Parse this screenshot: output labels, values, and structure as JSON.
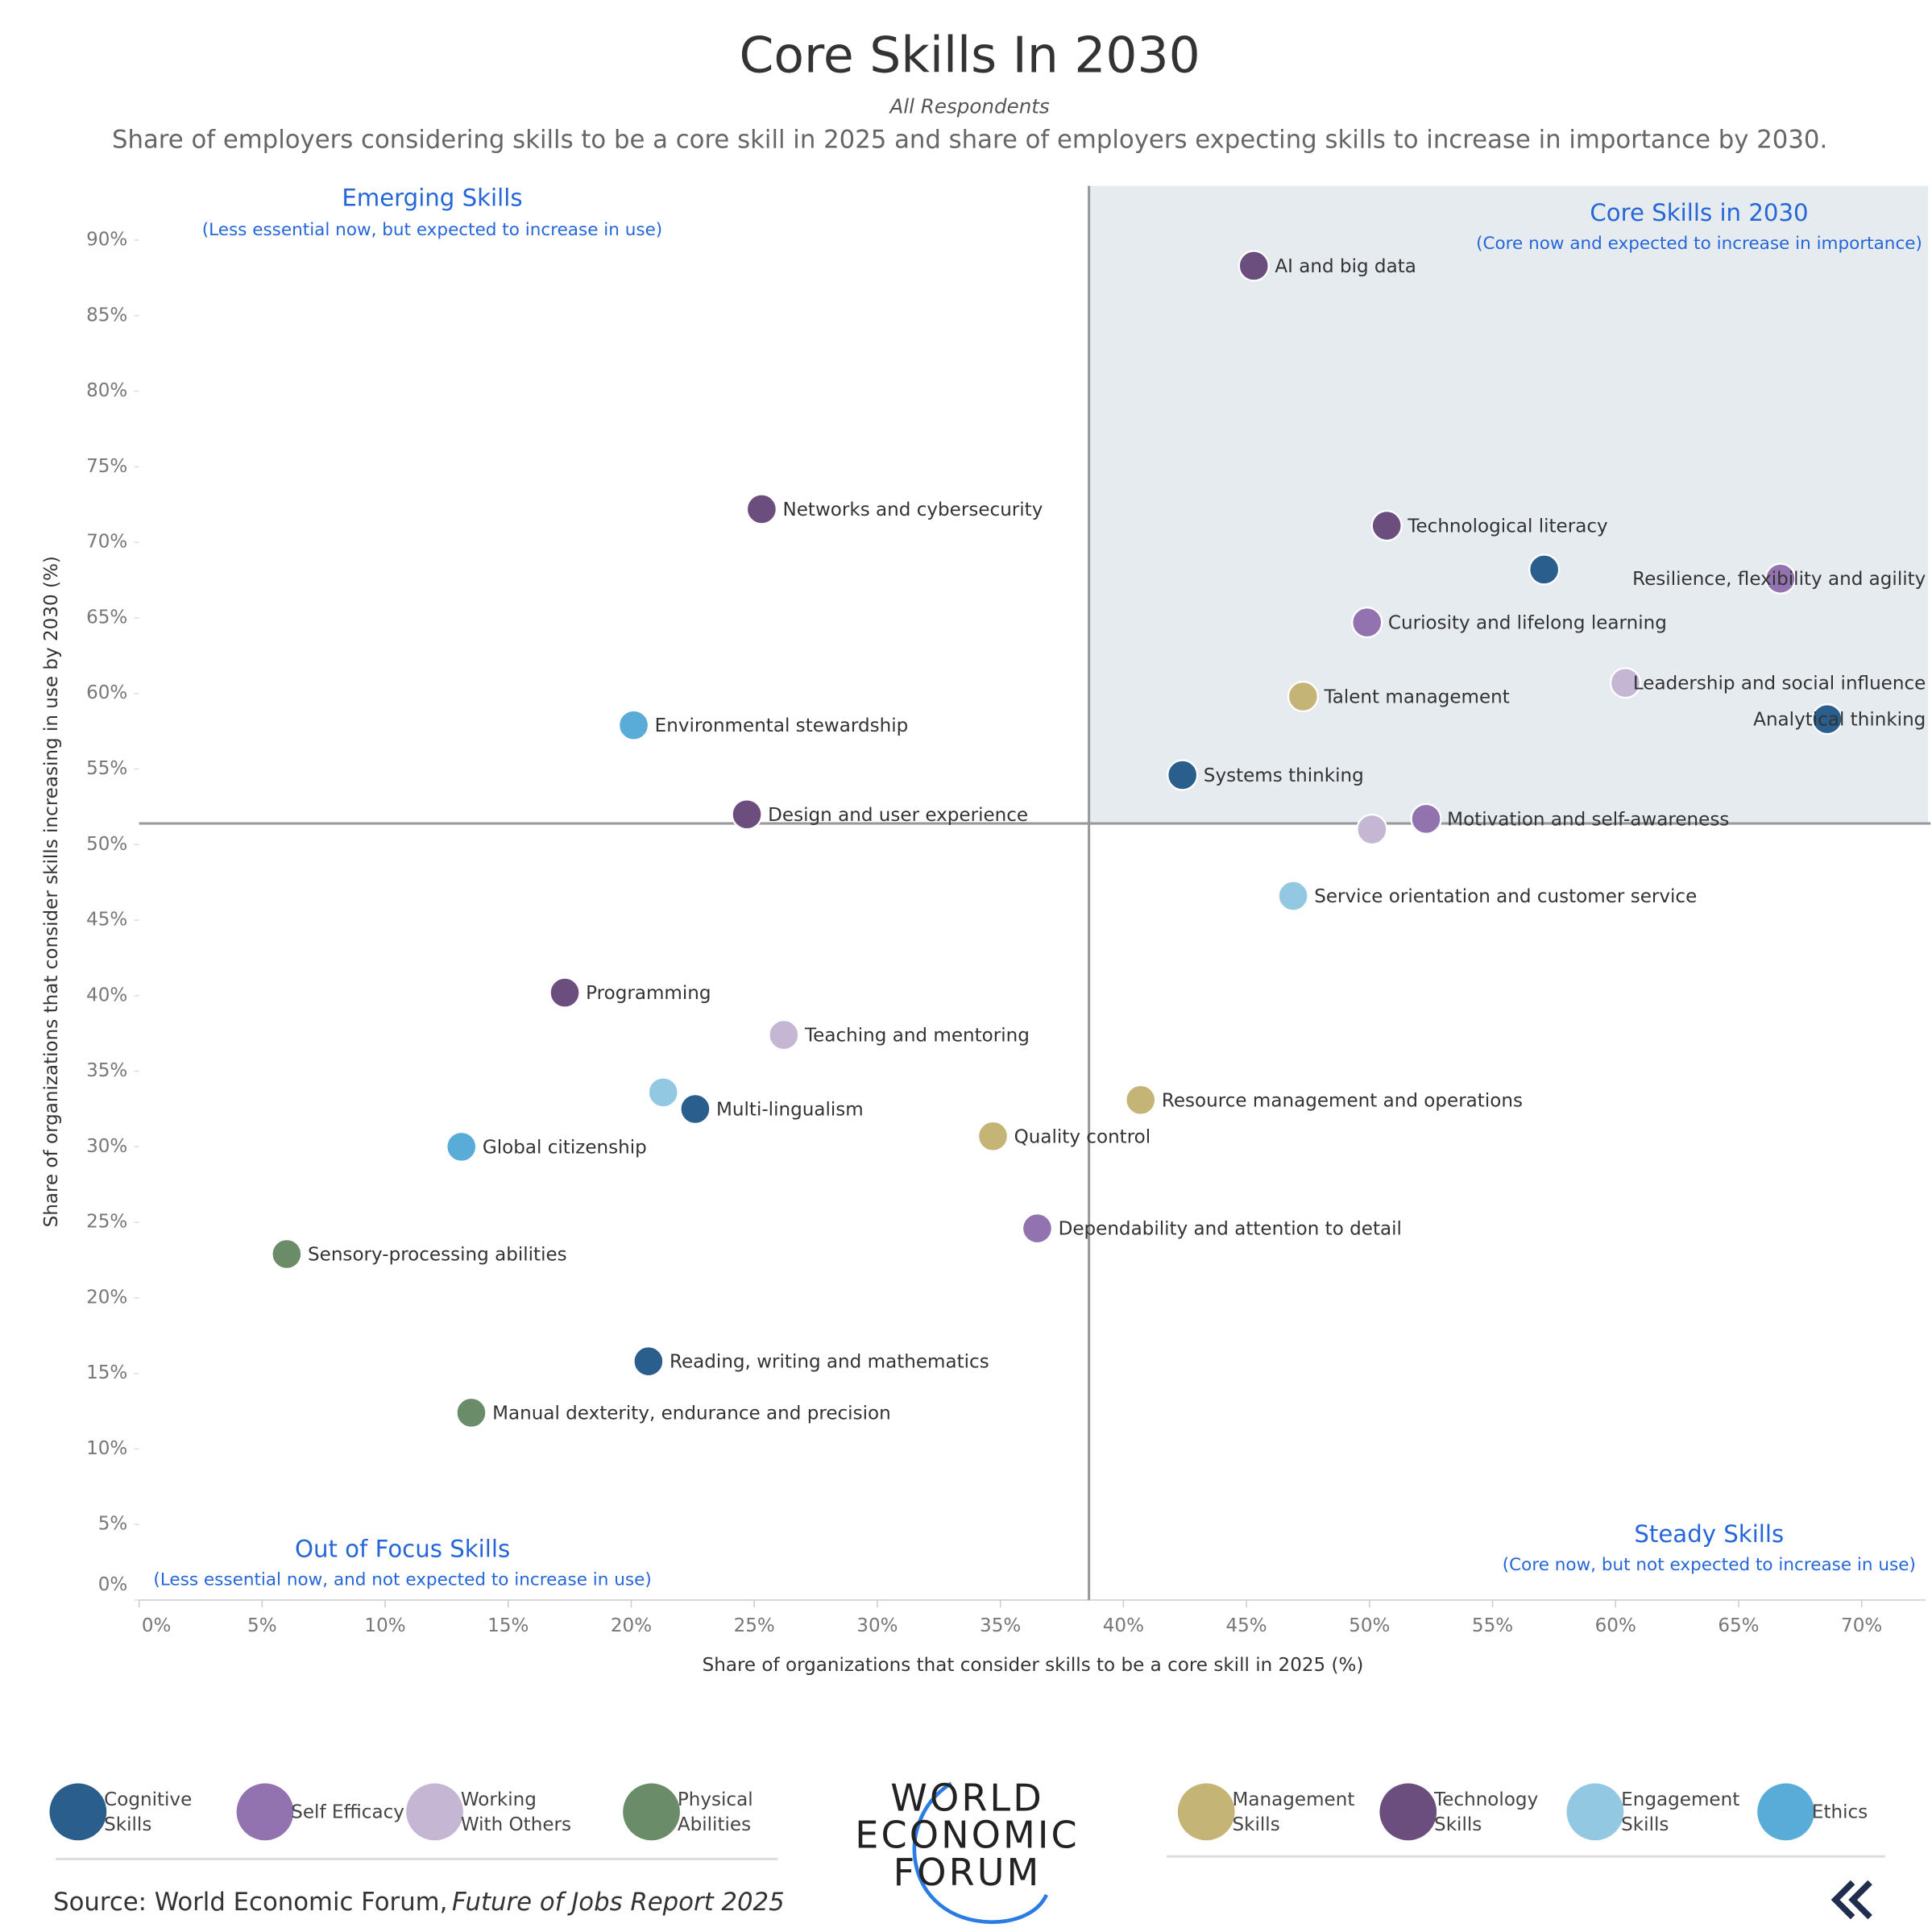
{
  "chart_data": {
    "type": "scatter",
    "title": "Core Skills In 2030",
    "subtitle": "All Respondents",
    "description": "Share of employers considering skills to be a core skill in 2025 and share of employers expecting skills to increase in importance by 2030.",
    "x_label": "Share of organizations that consider skills to be a core skill in 2025 (%)",
    "y_label": "Share of organizations that consider skills increasing in use by 2030 (%)",
    "xlim": [
      0,
      72.6
    ],
    "ylim": [
      0,
      93.6
    ],
    "xticks": [
      {
        "value": 0,
        "label": "0%"
      },
      {
        "value": 5,
        "label": "5%"
      },
      {
        "value": 10,
        "label": "10%"
      },
      {
        "value": 15,
        "label": "15%"
      },
      {
        "value": 20,
        "label": "20%"
      },
      {
        "value": 25,
        "label": "25%"
      },
      {
        "value": 30,
        "label": "30%"
      },
      {
        "value": 35,
        "label": "35%"
      },
      {
        "value": 40,
        "label": "40%"
      },
      {
        "value": 45,
        "label": "45%"
      },
      {
        "value": 50,
        "label": "50%"
      },
      {
        "value": 55,
        "label": "55%"
      },
      {
        "value": 60,
        "label": "60%"
      },
      {
        "value": 65,
        "label": "65%"
      },
      {
        "value": 70,
        "label": "70%"
      }
    ],
    "yticks": [
      {
        "value": 0,
        "label": "0%"
      },
      {
        "value": 5,
        "label": "5%"
      },
      {
        "value": 10,
        "label": "10%"
      },
      {
        "value": 15,
        "label": "15%"
      },
      {
        "value": 20,
        "label": "20%"
      },
      {
        "value": 25,
        "label": "25%"
      },
      {
        "value": 30,
        "label": "30%"
      },
      {
        "value": 35,
        "label": "35%"
      },
      {
        "value": 40,
        "label": "40%"
      },
      {
        "value": 45,
        "label": "45%"
      },
      {
        "value": 50,
        "label": "50%"
      },
      {
        "value": 55,
        "label": "55%"
      },
      {
        "value": 60,
        "label": "60%"
      },
      {
        "value": 65,
        "label": "65%"
      },
      {
        "value": 70,
        "label": "70%"
      },
      {
        "value": 75,
        "label": "75%"
      },
      {
        "value": 80,
        "label": "80%"
      },
      {
        "value": 85,
        "label": "85%"
      },
      {
        "value": 90,
        "label": "90%"
      }
    ],
    "reference_lines": {
      "x": 38.6,
      "y": 51.4
    },
    "quadrants": {
      "emerging": {
        "title": "Emerging Skills",
        "note": "(Less essential now, but expected to increase in use)"
      },
      "core": {
        "title": "Core Skills in 2030",
        "note": "(Core now and expected to increase in importance)"
      },
      "out_of_focus": {
        "title": "Out of Focus Skills",
        "note": "(Less essential now, and not expected to increase in use)"
      },
      "steady": {
        "title": "Steady Skills",
        "note": "(Core now, but not expected to increase in use)"
      }
    },
    "series": [
      {
        "name": "Cognitive Skills",
        "color": "#2a5e8c",
        "x": [
          57.1,
          68.6,
          42.4,
          22.6,
          20.7
        ],
        "values": [
          68.2,
          58.3,
          54.6,
          32.5,
          15.8
        ],
        "labels": [
          null,
          "Analytical thinking",
          "Systems thinking",
          "Multi-lingualism",
          "Reading, writing and mathematics"
        ]
      },
      {
        "name": "Self Efficacy",
        "color": "#9273b0",
        "x": [
          66.7,
          49.9,
          52.3,
          36.5
        ],
        "values": [
          67.6,
          64.7,
          51.7,
          24.6
        ],
        "labels": [
          "Resilience, flexibility and agility",
          "Curiosity and lifelong learning",
          "Motivation and self-awareness",
          "Dependability and attention to detail"
        ]
      },
      {
        "name": "Working With Others",
        "color": "#c5b7d3",
        "x": [
          60.4,
          50.1,
          26.2
        ],
        "values": [
          60.7,
          51.0,
          37.4
        ],
        "labels": [
          "Leadership and social influence",
          null,
          "Teaching and mentoring"
        ]
      },
      {
        "name": "Physical Abilities",
        "color": "#6a8c68",
        "x": [
          6.0,
          13.5
        ],
        "values": [
          22.9,
          12.4
        ],
        "labels": [
          "Sensory-processing abilities",
          "Manual dexterity, endurance and precision"
        ]
      },
      {
        "name": "Management Skills",
        "color": "#c4b577",
        "x": [
          47.3,
          40.7,
          34.7
        ],
        "values": [
          59.8,
          33.1,
          30.7
        ],
        "labels": [
          "Talent management",
          "Resource management and operations",
          "Quality control"
        ]
      },
      {
        "name": "Technology Skills",
        "color": "#6b4e7e",
        "x": [
          45.3,
          25.3,
          50.7,
          24.7,
          17.3
        ],
        "values": [
          88.3,
          72.2,
          71.1,
          52.0,
          40.2
        ],
        "labels": [
          "AI and big data",
          "Networks and cybersecurity",
          "Technological literacy",
          "Design and user experience",
          "Programming"
        ]
      },
      {
        "name": "Engagement Skills",
        "color": "#93c8e2",
        "x": [
          46.9,
          21.3
        ],
        "values": [
          46.6,
          33.6
        ],
        "labels": [
          "Service orientation and customer service",
          null
        ]
      },
      {
        "name": "Ethics",
        "color": "#59acd8",
        "x": [
          20.1,
          13.1
        ],
        "values": [
          57.9,
          30.0
        ],
        "labels": [
          "Environmental stewardship",
          "Global citizenship"
        ]
      }
    ]
  },
  "footer": {
    "source": "Source: World Economic Forum,",
    "source_title": "Future of Jobs Report 2025",
    "logo": [
      "WORLD",
      "ECONOMIC",
      "FORUM"
    ]
  }
}
